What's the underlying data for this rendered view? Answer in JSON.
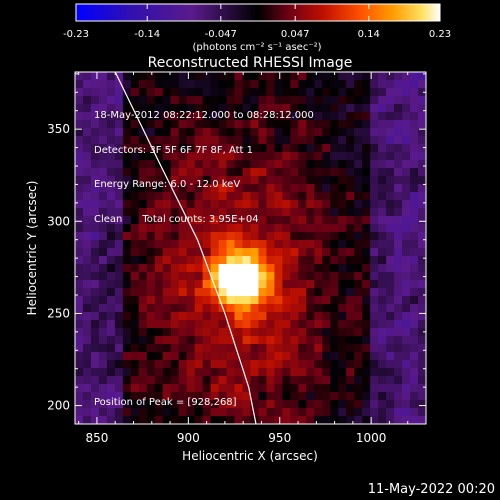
{
  "chart_data": {
    "type": "heatmap",
    "title": "Reconstructed RHESSI Image",
    "xlabel": "Heliocentric X (arcsec)",
    "ylabel": "Heliocentric Y (arcsec)",
    "xlim": [
      838,
      1030
    ],
    "ylim": [
      190,
      381
    ],
    "xticks": [
      850,
      900,
      950,
      1000
    ],
    "yticks": [
      200,
      250,
      300,
      350
    ],
    "colorbar": {
      "min": -0.23,
      "max": 0.23,
      "ticks": [
        "-0.23",
        "-0.14",
        "-0.047",
        "0.047",
        "0.14",
        "0.23"
      ],
      "unit_label": "(photons cm⁻² s⁻¹ asec⁻²)",
      "colors": [
        "#0000ff",
        "#3010b0",
        "#5a1a8a",
        "#000000",
        "#6a0015",
        "#c01000",
        "#ff5000",
        "#ff9c00",
        "#ffe060",
        "#ffffff"
      ]
    },
    "peak": {
      "x": 928,
      "y": 268
    },
    "limb": [
      [
        860,
        381
      ],
      [
        885,
        330
      ],
      [
        905,
        290
      ],
      [
        920,
        250
      ],
      [
        933,
        210
      ],
      [
        937,
        190
      ]
    ],
    "annotations": {
      "time_range": "18-May-2012 08:22:12.000 to 08:28:12.000",
      "detectors": "Detectors: 3F 5F 6F 7F 8F, Att 1",
      "energy": "Energy Range: 6.0 - 12.0 keV",
      "method": "Clean",
      "total_counts": "Total counts: 3.95E+04",
      "peak_text": "Position of Peak = [928,268]"
    }
  },
  "footer": {
    "timestamp": "11-May-2022 00:20"
  }
}
